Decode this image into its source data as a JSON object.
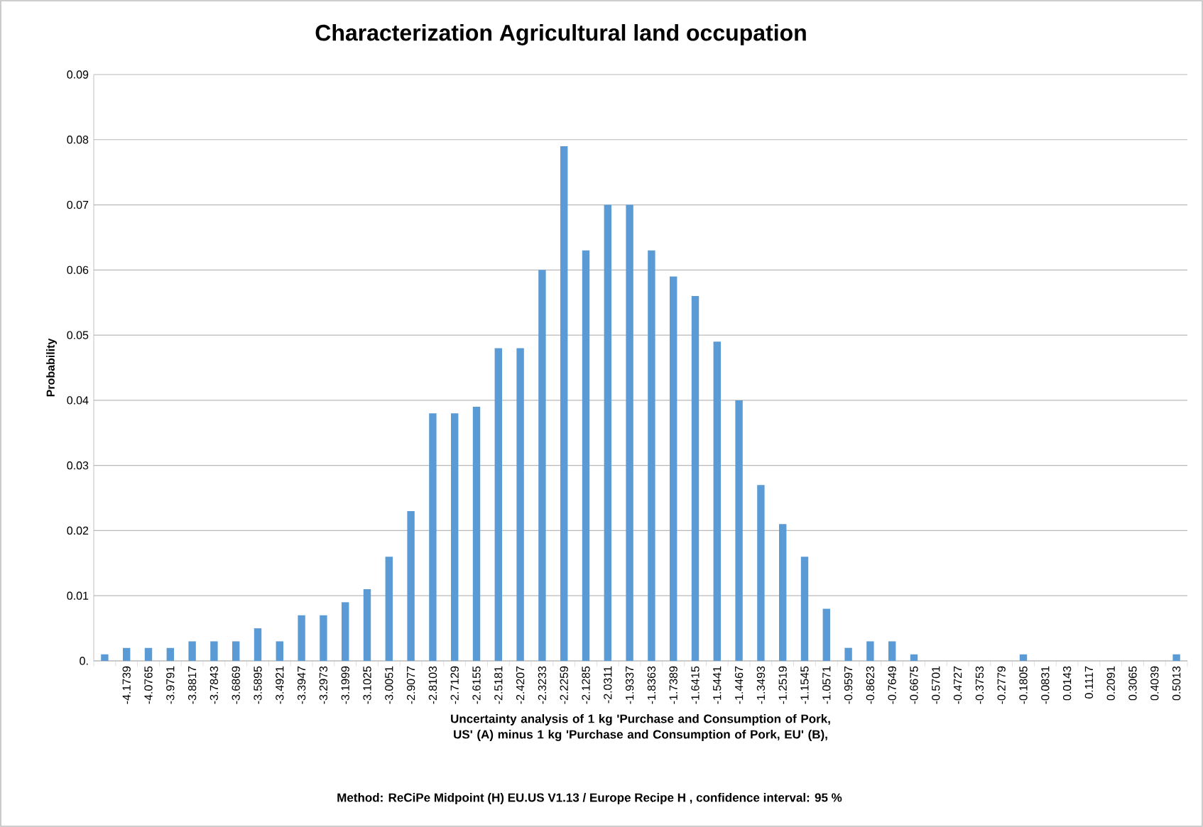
{
  "chart_data": {
    "type": "bar",
    "title": "Characterization Agricultural land occupation",
    "xlabel": "Uncertainty analysis of 1 kg 'Purchase and Consumption of Pork, US' (A) minus 1 kg 'Purchase and Consumption of Pork, EU' (B),",
    "ylabel": "Probability",
    "annotations": [
      "Method: ReCiPe Midpoint (H) EU.US V1.13 / Europe Recipe H , confidence interval: 95 %"
    ],
    "categories": [
      null,
      "-4.1739",
      "-4.0765",
      "-3.9791",
      "-3.8817",
      "-3.7843",
      "-3.6869",
      "-3.5895",
      "-3.4921",
      "-3.3947",
      "-3.2973",
      "-3.1999",
      "-3.1025",
      "-3.0051",
      "-2.9077",
      "-2.8103",
      "-2.7129",
      "-2.6155",
      "-2.5181",
      "-2.4207",
      "-2.3233",
      "-2.2259",
      "-2.1285",
      "-2.0311",
      "-1.9337",
      "-1.8363",
      "-1.7389",
      "-1.6415",
      "-1.5441",
      "-1.4467",
      "-1.3493",
      "-1.2519",
      "-1.1545",
      "-1.0571",
      "-0.9597",
      "-0.8623",
      "-0.7649",
      "-0.6675",
      "-0.5701",
      "-0.4727",
      "-0.3753",
      "-0.2779",
      "-0.1805",
      "-0.0831",
      "0.0143",
      "0.1117",
      "0.2091",
      "0.3065",
      "0.4039",
      "0.5013"
    ],
    "values": [
      0.001,
      0.002,
      0.002,
      0.002,
      0.003,
      0.003,
      0.003,
      0.005,
      0.003,
      0.007,
      0.007,
      0.009,
      0.011,
      0.016,
      0.023,
      0.038,
      0.038,
      0.039,
      0.048,
      0.048,
      0.06,
      0.079,
      0.063,
      0.07,
      0.07,
      0.063,
      0.059,
      0.056,
      0.049,
      0.04,
      0.027,
      0.021,
      0.016,
      0.008,
      0.002,
      0.003,
      0.003,
      0.001,
      0,
      0,
      0,
      0,
      0.001,
      0,
      0,
      0,
      0,
      0,
      0,
      0.001
    ],
    "color": "#5b9bd5",
    "ylim": [
      0,
      0.09
    ],
    "yticks": [
      {
        "value": 0,
        "label": "0."
      },
      0.01,
      0.02,
      0.03,
      0.04,
      0.05,
      0.06,
      0.07,
      0.08,
      0.09
    ],
    "grid": "y"
  }
}
